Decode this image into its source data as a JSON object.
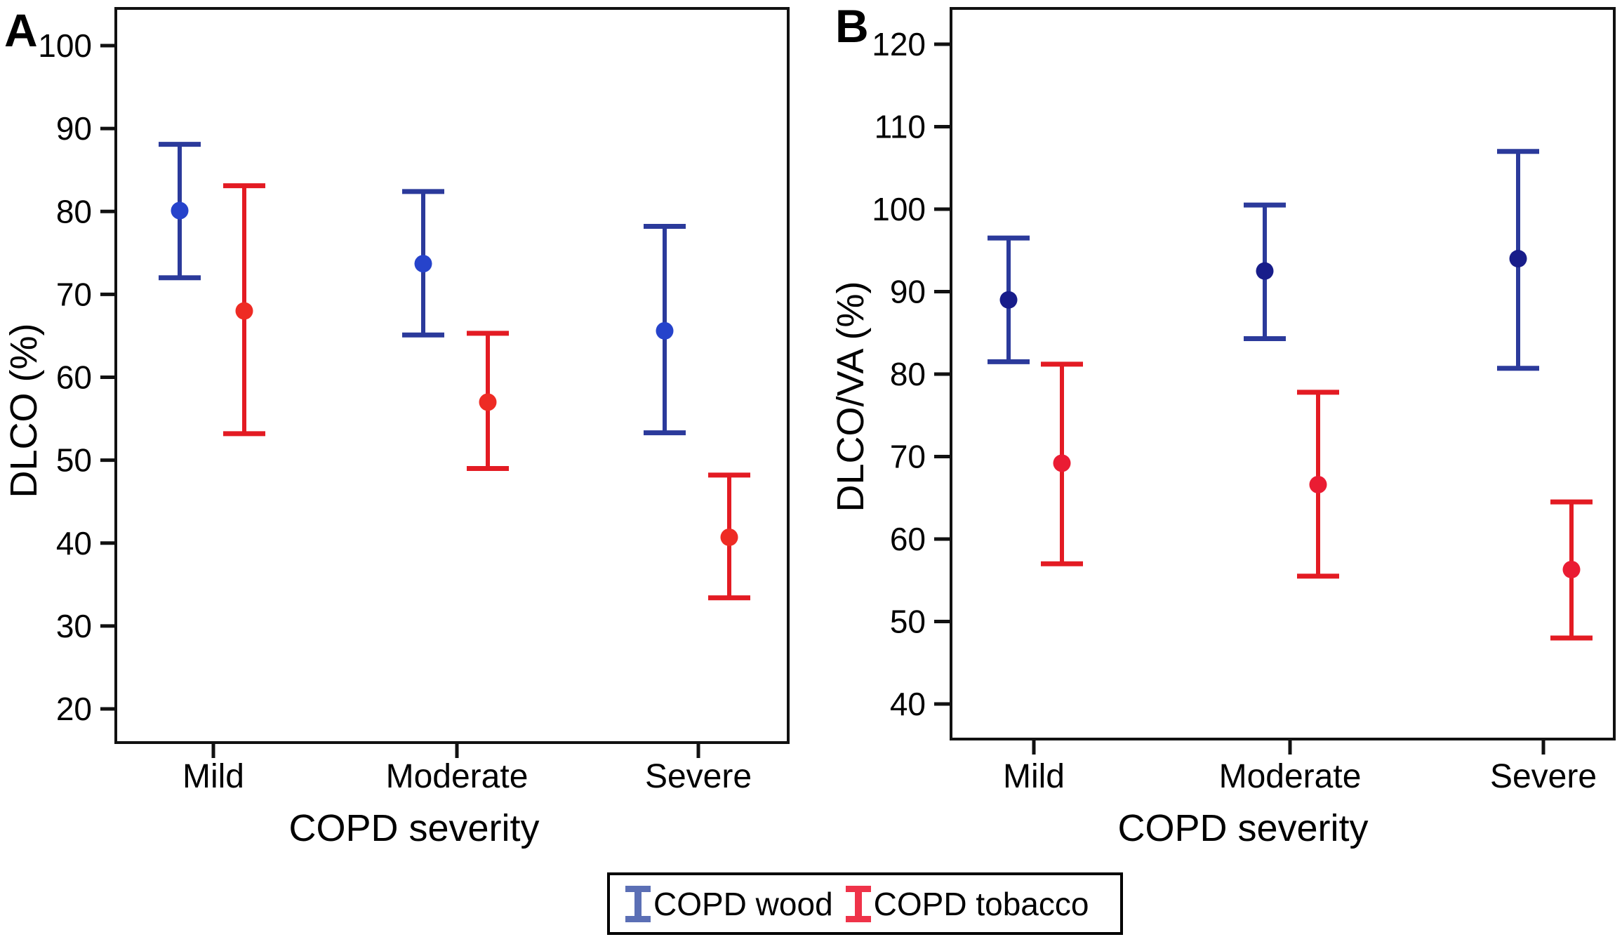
{
  "figure_title": "",
  "chart_data": [
    {
      "type": "errorbar",
      "panel_label": "A",
      "ylabel": "DLCO (%)",
      "xlabel": "COPD severity",
      "categories": [
        "Mild",
        "Moderate",
        "Severe"
      ],
      "yticks": [
        100,
        90,
        80,
        70,
        60,
        50,
        40,
        30,
        20
      ],
      "ylim": [
        13,
        104
      ],
      "grid": false,
      "series": [
        {
          "name": "COPD wood",
          "means": [
            80.1,
            73.7,
            65.6
          ],
          "lower": [
            72.0,
            65.1,
            53.3
          ],
          "upper": [
            88.1,
            82.4,
            78.2
          ],
          "color": "#2B3A9B",
          "marker_color": "#2643CB"
        },
        {
          "name": "COPD tobacco",
          "means": [
            68.0,
            57.0,
            40.7
          ],
          "lower": [
            53.2,
            49.0,
            33.4
          ],
          "upper": [
            83.1,
            65.3,
            48.2
          ],
          "color": "#E31B23",
          "marker_color": "#EE2B24"
        }
      ]
    },
    {
      "type": "errorbar",
      "panel_label": "B",
      "ylabel": "DLCO/VA (%)",
      "xlabel": "COPD severity",
      "categories": [
        "Mild",
        "Moderate",
        "Severe"
      ],
      "yticks": [
        120,
        110,
        100,
        90,
        80,
        70,
        60,
        50,
        40
      ],
      "ylim": [
        36,
        124
      ],
      "grid": false,
      "series": [
        {
          "name": "COPD wood",
          "means": [
            89.0,
            92.5,
            94.0
          ],
          "lower": [
            81.5,
            84.3,
            80.7
          ],
          "upper": [
            96.5,
            100.5,
            107.0
          ],
          "color": "#2B3A9B",
          "marker_color": "#181D8A"
        },
        {
          "name": "COPD tobacco",
          "means": [
            69.2,
            66.6,
            56.3
          ],
          "lower": [
            57.0,
            55.5,
            48.0
          ],
          "upper": [
            81.2,
            77.8,
            64.5
          ],
          "color": "#E31B23",
          "marker_color": "#EA1C33"
        }
      ]
    }
  ],
  "legend": {
    "items": [
      {
        "label": "COPD wood",
        "color": "#5B6FB5"
      },
      {
        "label": "COPD tobacco",
        "color": "#EF3349"
      }
    ]
  },
  "colors": {
    "axis": "#111111",
    "text": "#000000",
    "background": "#ffffff"
  }
}
